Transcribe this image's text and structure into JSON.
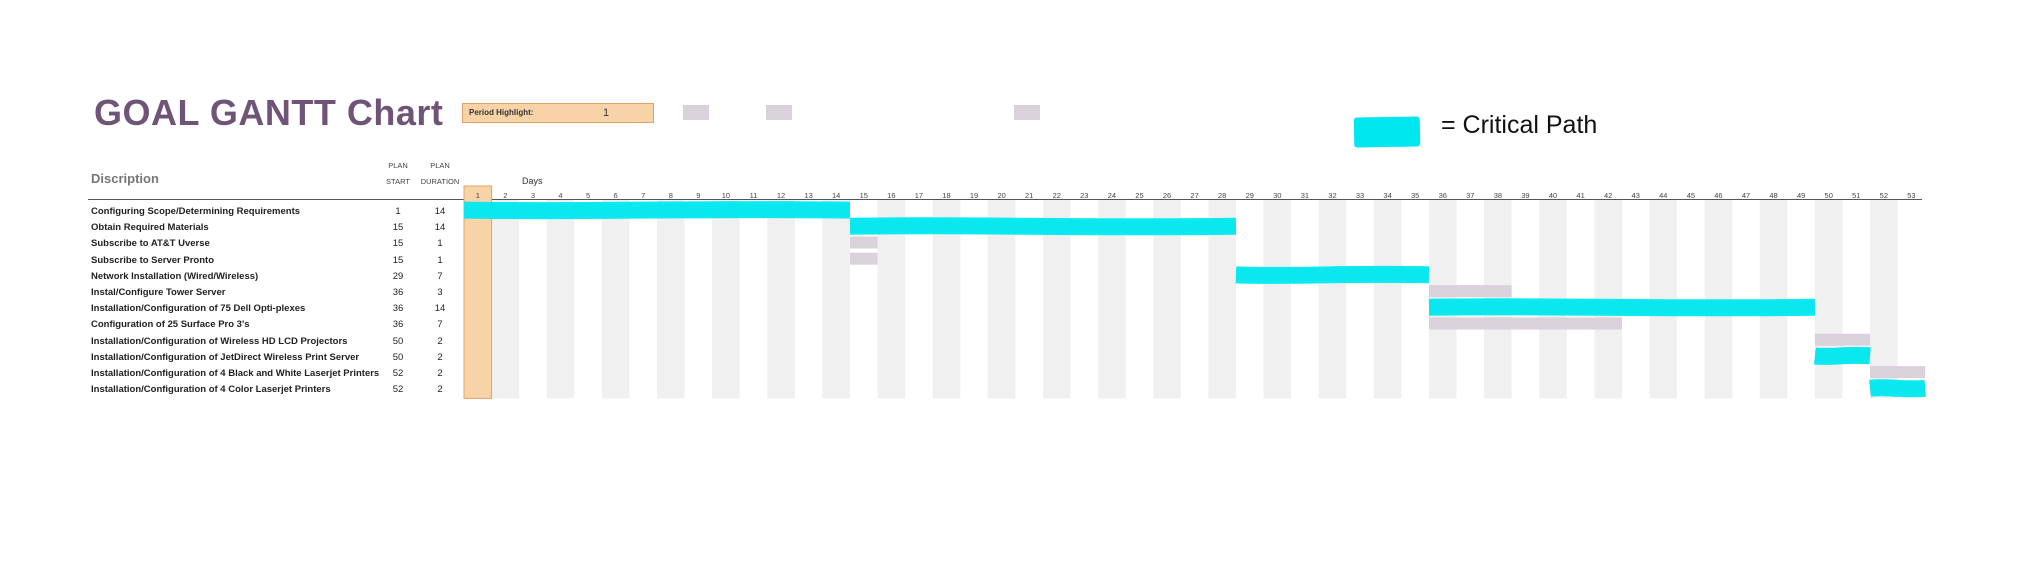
{
  "title": "GOAL GANTT Chart",
  "period_highlight": {
    "label": "Period Highlight:",
    "value": "1"
  },
  "legend": {
    "label": "= Critical Path",
    "color": "#00e8f0"
  },
  "headers": {
    "description": "Discription",
    "plan1": "PLAN",
    "start": "START",
    "plan2": "PLAN",
    "duration": "DURATION",
    "days": "Days"
  },
  "colors": {
    "bar": "#d9d2db",
    "highlight": "#f8d3a8",
    "stripe": "#f0f0f0",
    "critical": "#00e8f0",
    "title": "#6f5478"
  },
  "chart_data": {
    "type": "bar",
    "periods": [
      1,
      2,
      3,
      4,
      5,
      6,
      7,
      8,
      9,
      10,
      11,
      12,
      13,
      14,
      15,
      16,
      17,
      18,
      19,
      20,
      21,
      22,
      23,
      24,
      25,
      26,
      27,
      28,
      29,
      30,
      31,
      32,
      33,
      34,
      35,
      36,
      37,
      38,
      39,
      40,
      41,
      42,
      43,
      44,
      45,
      46,
      47,
      48,
      49,
      50,
      51,
      52,
      53
    ],
    "highlight_period": 1,
    "tasks": [
      {
        "name": "Configuring Scope/Determining Requirements",
        "start": 1,
        "duration": 14,
        "critical": true
      },
      {
        "name": "Obtain Required Materials",
        "start": 15,
        "duration": 14,
        "critical": true
      },
      {
        "name": "Subscribe to AT&T Uverse",
        "start": 15,
        "duration": 1,
        "critical": false
      },
      {
        "name": "Subscribe to Server Pronto",
        "start": 15,
        "duration": 1,
        "critical": false
      },
      {
        "name": "Network Installation (Wired/Wireless)",
        "start": 29,
        "duration": 7,
        "critical": true
      },
      {
        "name": "Instal/Configure Tower Server",
        "start": 36,
        "duration": 3,
        "critical": false
      },
      {
        "name": "Installation/Configuration of 75 Dell Opti-plexes",
        "start": 36,
        "duration": 14,
        "critical": true
      },
      {
        "name": "Configuration of 25 Surface Pro 3's",
        "start": 36,
        "duration": 7,
        "critical": false
      },
      {
        "name": "Installation/Configuration of Wireless HD LCD Projectors",
        "start": 50,
        "duration": 2,
        "critical": false
      },
      {
        "name": "Installation/Configuration of JetDirect Wireless Print Server",
        "start": 50,
        "duration": 2,
        "critical": true
      },
      {
        "name": "Installation/Configuration of 4 Black and White Laserjet Printers",
        "start": 52,
        "duration": 2,
        "critical": false
      },
      {
        "name": "Installation/Configuration of 4 Color Laserjet Printers",
        "start": 52,
        "duration": 2,
        "critical": true
      }
    ]
  }
}
